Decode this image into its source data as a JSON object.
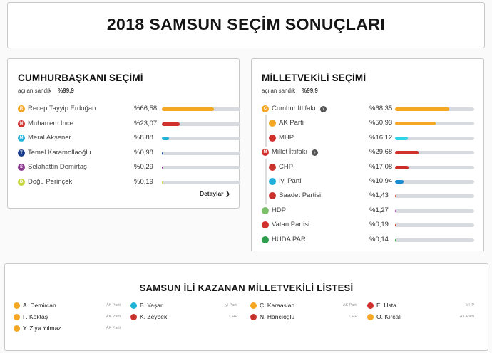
{
  "header": {
    "title": "2018 SAMSUN SEÇİM SONUÇLARI"
  },
  "presidential": {
    "title": "CUMHURBAŞKANI SEÇİMİ",
    "sandik_label": "açılan sandık",
    "sandik_pct": "%99,9",
    "detail_label": "Detaylar",
    "candidates": [
      {
        "name": "Recep Tayyip Erdoğan",
        "pct_text": "%66,58",
        "value": 66.58,
        "color": "#f5a623",
        "icon_letter": "R"
      },
      {
        "name": "Muharrem İnce",
        "pct_text": "%23,07",
        "value": 23.07,
        "color": "#d0312d",
        "icon_letter": "M"
      },
      {
        "name": "Meral Akşener",
        "pct_text": "%8,88",
        "value": 8.88,
        "color": "#1fb1d8",
        "icon_letter": "M"
      },
      {
        "name": "Temel Karamollaoğlu",
        "pct_text": "%0,98",
        "value": 0.98,
        "color": "#1a3d8f",
        "icon_letter": "T"
      },
      {
        "name": "Selahattin Demirtaş",
        "pct_text": "%0,29",
        "value": 0.29,
        "color": "#8b3a8f",
        "icon_letter": "S"
      },
      {
        "name": "Doğu Perinçek",
        "pct_text": "%0,19",
        "value": 0.19,
        "color": "#c6d640",
        "icon_letter": "D"
      }
    ]
  },
  "parliament": {
    "title": "MİLLETVEKİLİ SEÇİMİ",
    "sandik_label": "açılan sandık",
    "sandik_pct": "%99,9",
    "parties": [
      {
        "name": "Cumhur İttifakı",
        "pct_text": "%68,35",
        "value": 68.35,
        "color": "#f5a623",
        "icon": "alliance-c-icon",
        "icon_color": "#f5a623",
        "alliance": true,
        "sub": false
      },
      {
        "name": "AK Parti",
        "pct_text": "%50,93",
        "value": 50.93,
        "color": "#f5a623",
        "icon": "ak-parti-logo-icon",
        "icon_color": "#f5a623",
        "alliance": false,
        "sub": true
      },
      {
        "name": "MHP",
        "pct_text": "%16,12",
        "value": 16.12,
        "color": "#2ed3e6",
        "icon": "mhp-logo-icon",
        "icon_color": "#d0312d",
        "alliance": false,
        "sub": true
      },
      {
        "name": "Millet İttifakı",
        "pct_text": "%29,68",
        "value": 29.68,
        "color": "#d0312d",
        "icon": "alliance-m-icon",
        "icon_color": "#d0312d",
        "alliance": true,
        "sub": false
      },
      {
        "name": "CHP",
        "pct_text": "%17,08",
        "value": 17.08,
        "color": "#c9302c",
        "icon": "chp-logo-icon",
        "icon_color": "#c9302c",
        "alliance": false,
        "sub": true
      },
      {
        "name": "İyi Parti",
        "pct_text": "%10,94",
        "value": 10.94,
        "color": "#1a8bd0",
        "icon": "iyi-parti-logo-icon",
        "icon_color": "#1fb1d8",
        "alliance": false,
        "sub": true
      },
      {
        "name": "Saadet Partisi",
        "pct_text": "%1,43",
        "value": 1.43,
        "color": "#c9302c",
        "icon": "saadet-logo-icon",
        "icon_color": "#c9302c",
        "alliance": false,
        "sub": true
      },
      {
        "name": "HDP",
        "pct_text": "%1,27",
        "value": 1.27,
        "color": "#8b3a8f",
        "icon": "hdp-logo-icon",
        "icon_color": "#7bbf6a",
        "alliance": false,
        "sub": false
      },
      {
        "name": "Vatan Partisi",
        "pct_text": "%0,19",
        "value": 0.19,
        "color": "#d0312d",
        "icon": "vatan-logo-icon",
        "icon_color": "#d0312d",
        "alliance": false,
        "sub": false
      },
      {
        "name": "HÜDA PAR",
        "pct_text": "%0,14",
        "value": 0.14,
        "color": "#2e9e4d",
        "icon": "huda-par-logo-icon",
        "icon_color": "#2e9e4d",
        "alliance": false,
        "sub": false
      }
    ]
  },
  "mp_list": {
    "title": "SAMSUN İLİ KAZANAN MİLLETVEKİLİ LİSTESİ",
    "columns": [
      [
        {
          "name": "A. Demircan",
          "party": "AK Parti",
          "color": "#f5a623"
        },
        {
          "name": "F. Köktaş",
          "party": "AK Parti",
          "color": "#f5a623"
        },
        {
          "name": "Y. Ziya Yılmaz",
          "party": "AK Parti",
          "color": "#f5a623"
        }
      ],
      [
        {
          "name": "B. Yaşar",
          "party": "İyi Parti",
          "color": "#1fb1d8"
        },
        {
          "name": "K. Zeybek",
          "party": "CHP",
          "color": "#c9302c"
        }
      ],
      [
        {
          "name": "Ç. Karaaslan",
          "party": "AK Parti",
          "color": "#f5a623"
        },
        {
          "name": "N. Hancıoğlu",
          "party": "CHP",
          "color": "#c9302c"
        }
      ],
      [
        {
          "name": "E. Usta",
          "party": "MHP",
          "color": "#d0312d"
        },
        {
          "name": "O. Kırcalı",
          "party": "AK Parti",
          "color": "#f5a623"
        }
      ]
    ]
  }
}
